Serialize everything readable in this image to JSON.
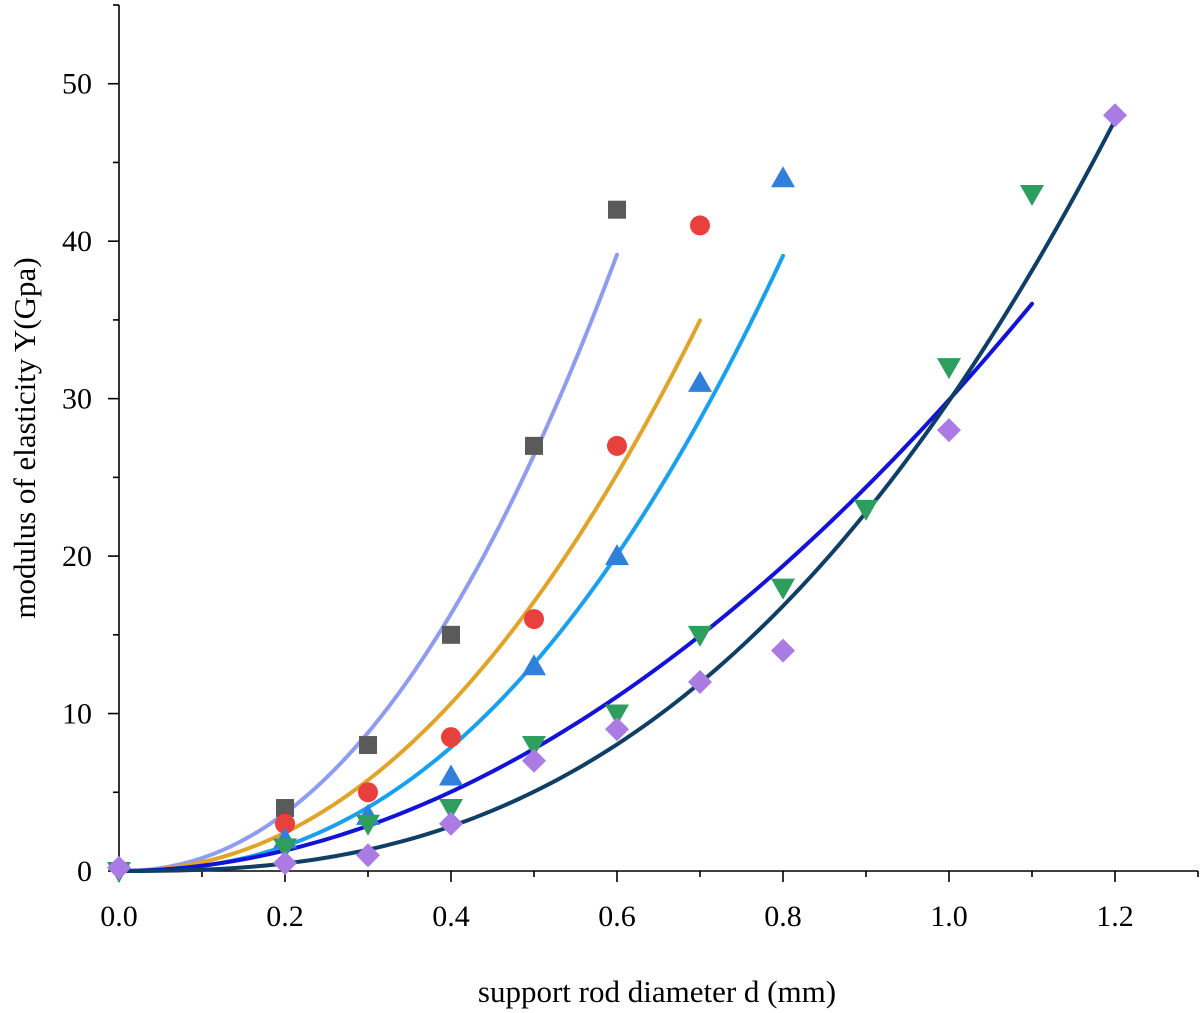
{
  "chart_data": {
    "type": "scatter",
    "title": "",
    "xlabel": "support rod diameter d (mm)",
    "ylabel": "modulus of elasticity Y(Gpa)",
    "xlim": [
      0,
      1.3
    ],
    "ylim": [
      0,
      55
    ],
    "x_ticks": [
      0.0,
      0.2,
      0.4,
      0.6,
      0.8,
      1.0,
      1.2
    ],
    "x_tick_labels": [
      "0.0",
      "0.2",
      "0.4",
      "0.6",
      "0.8",
      "1.0",
      "1.2"
    ],
    "y_ticks": [
      0,
      10,
      20,
      30,
      40,
      50
    ],
    "y_tick_labels": [
      "0",
      "10",
      "20",
      "30",
      "40",
      "50"
    ],
    "grid": false,
    "legend": "none",
    "series": [
      {
        "marker": "square",
        "marker_color": "#5a5a5a",
        "fit_color": "#8f9cf0",
        "x": [
          0.2,
          0.3,
          0.4,
          0.5,
          0.6
        ],
        "y": [
          4,
          8,
          15,
          27,
          42
        ],
        "fit_x_max": 0.6
      },
      {
        "marker": "circle",
        "marker_color": "#e8403c",
        "fit_color": "#e0a42a",
        "x": [
          0.2,
          0.3,
          0.4,
          0.5,
          0.6,
          0.7
        ],
        "y": [
          3,
          5,
          8.5,
          16,
          27,
          41
        ],
        "fit_x_max": 0.7
      },
      {
        "marker": "triangle-up",
        "marker_color": "#2f7fdb",
        "fit_color": "#1aa0ee",
        "x": [
          0.2,
          0.3,
          0.4,
          0.5,
          0.6,
          0.7,
          0.8
        ],
        "y": [
          2,
          3.5,
          6,
          13,
          20,
          31,
          44
        ],
        "fit_x_max": 0.8
      },
      {
        "marker": "triangle-down",
        "marker_color": "#2e9e5e",
        "fit_color": "#1212d8",
        "x": [
          0.0,
          0.2,
          0.3,
          0.4,
          0.5,
          0.6,
          0.7,
          0.8,
          0.9,
          1.0,
          1.1
        ],
        "y": [
          0,
          1.5,
          3,
          4,
          8,
          10,
          15,
          18,
          23,
          32,
          43
        ],
        "fit_x_max": 1.1
      },
      {
        "marker": "diamond",
        "marker_color": "#a97be3",
        "fit_color": "#0f3f66",
        "x": [
          0.0,
          0.2,
          0.3,
          0.4,
          0.5,
          0.6,
          0.7,
          0.8,
          1.0,
          1.2
        ],
        "y": [
          0.2,
          0.5,
          1,
          3,
          7,
          9,
          12,
          14,
          28,
          48
        ],
        "fit_x_max": 1.2
      }
    ]
  }
}
